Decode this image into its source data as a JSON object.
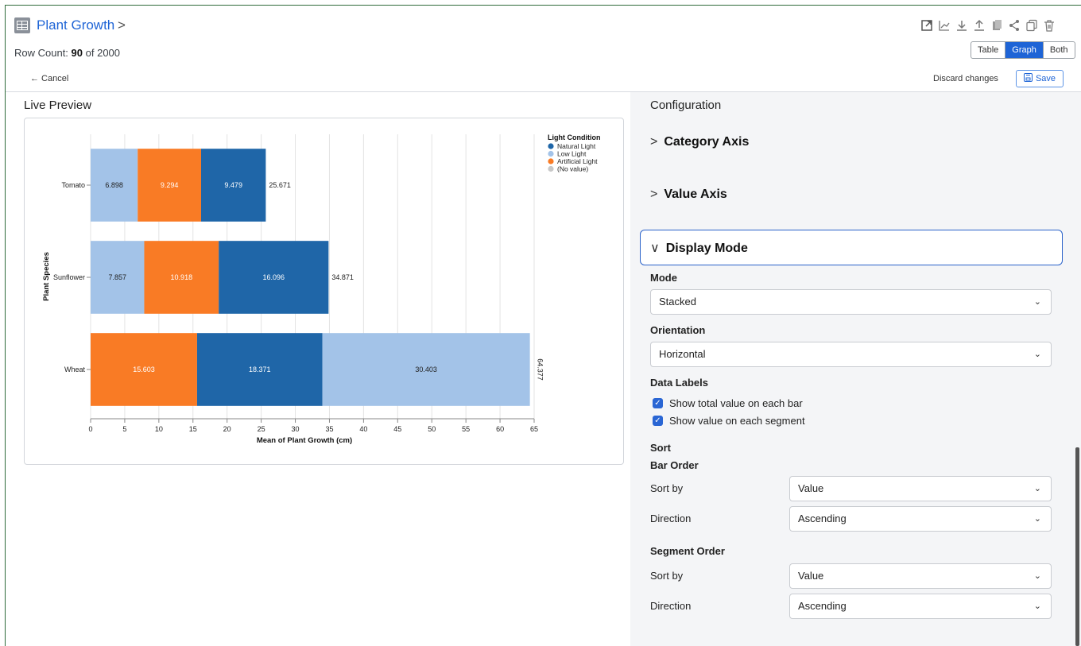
{
  "header": {
    "title": "Plant Growth",
    "chevron": ">",
    "row_count_label": "Row Count:",
    "row_count": "90",
    "row_count_of": "of 2000",
    "view_options": [
      "Table",
      "Graph",
      "Both"
    ],
    "active_view": "Graph",
    "icons": [
      "open-external-icon",
      "chart-icon",
      "download-icon",
      "upload-icon",
      "clipboard-icon",
      "share-icon",
      "copy-icon",
      "trash-icon"
    ]
  },
  "actions": {
    "cancel": "← Cancel",
    "discard": "Discard changes",
    "save": "Save"
  },
  "preview": {
    "title": "Live Preview"
  },
  "chart_data": {
    "type": "bar",
    "orientation": "horizontal",
    "stacked": true,
    "categories": [
      "Tomato",
      "Sunflower",
      "Wheat"
    ],
    "xlabel": "Mean of Plant Growth (cm)",
    "ylabel": "Plant Species",
    "xlim": [
      0,
      65
    ],
    "xticks": [
      0,
      5,
      10,
      15,
      20,
      25,
      30,
      35,
      40,
      45,
      50,
      55,
      60,
      65
    ],
    "grid": true,
    "legend_title": "Light Condition",
    "legend_position": "top-right",
    "legend": [
      {
        "name": "Natural Light",
        "color": "#1f66a8"
      },
      {
        "name": "Low Light",
        "color": "#a3c3e8"
      },
      {
        "name": "Artificial Light",
        "color": "#f97b25"
      },
      {
        "name": "(No value)",
        "color": "#c8c8c8"
      }
    ],
    "bars": [
      {
        "category": "Tomato",
        "total": "25.671",
        "segments": [
          {
            "series": "Low Light",
            "value": 6.898,
            "label": "6.898"
          },
          {
            "series": "Artificial Light",
            "value": 9.294,
            "label": "9.294"
          },
          {
            "series": "Natural Light",
            "value": 9.479,
            "label": "9.479"
          }
        ]
      },
      {
        "category": "Sunflower",
        "total": "34.871",
        "segments": [
          {
            "series": "Low Light",
            "value": 7.857,
            "label": "7.857"
          },
          {
            "series": "Artificial Light",
            "value": 10.918,
            "label": "10.918"
          },
          {
            "series": "Natural Light",
            "value": 16.096,
            "label": "16.096"
          }
        ]
      },
      {
        "category": "Wheat",
        "total": "64.377",
        "segments": [
          {
            "series": "Artificial Light",
            "value": 15.603,
            "label": "15.603"
          },
          {
            "series": "Natural Light",
            "value": 18.371,
            "label": "18.371"
          },
          {
            "series": "Low Light",
            "value": 30.403,
            "label": "30.403"
          }
        ]
      }
    ]
  },
  "config": {
    "title": "Configuration",
    "sections": {
      "category_axis": "Category Axis",
      "value_axis": "Value Axis",
      "display_mode": "Display Mode"
    },
    "mode_label": "Mode",
    "mode_value": "Stacked",
    "orientation_label": "Orientation",
    "orientation_value": "Horizontal",
    "data_labels_label": "Data Labels",
    "show_total": "Show total value on each bar",
    "show_segment": "Show value on each segment",
    "sort_label": "Sort",
    "bar_order_label": "Bar Order",
    "bar_sort_by_label": "Sort by",
    "bar_sort_by_value": "Value",
    "bar_direction_label": "Direction",
    "bar_direction_value": "Ascending",
    "segment_order_label": "Segment Order",
    "seg_sort_by_label": "Sort by",
    "seg_sort_by_value": "Value",
    "seg_direction_label": "Direction",
    "seg_direction_value": "Ascending"
  }
}
